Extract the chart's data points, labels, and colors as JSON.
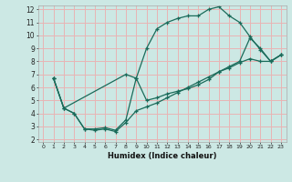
{
  "xlabel": "Humidex (Indice chaleur)",
  "xlim": [
    -0.5,
    23.5
  ],
  "ylim": [
    1.8,
    12.3
  ],
  "xticks": [
    0,
    1,
    2,
    3,
    4,
    5,
    6,
    7,
    8,
    9,
    10,
    11,
    12,
    13,
    14,
    15,
    16,
    17,
    18,
    19,
    20,
    21,
    22,
    23
  ],
  "yticks": [
    2,
    3,
    4,
    5,
    6,
    7,
    8,
    9,
    10,
    11,
    12
  ],
  "bg_color": "#cce8e4",
  "grid_color": "#e8b4b4",
  "line_color": "#1a6b5a",
  "line1_x": [
    1,
    2,
    3,
    4,
    5,
    6,
    7,
    8,
    9,
    10,
    11,
    12,
    13,
    14,
    15,
    16,
    17,
    18,
    19,
    20,
    21,
    22,
    23
  ],
  "line1_y": [
    6.7,
    4.4,
    4.0,
    2.8,
    2.8,
    2.9,
    2.7,
    3.5,
    6.7,
    9.0,
    10.5,
    11.0,
    11.3,
    11.5,
    11.5,
    12.0,
    12.2,
    11.5,
    11.0,
    9.9,
    8.9,
    8.0,
    8.5
  ],
  "line2_x": [
    1,
    2,
    8,
    9,
    10,
    11,
    12,
    13,
    14,
    15,
    16,
    17,
    18,
    19,
    20,
    21,
    22,
    23
  ],
  "line2_y": [
    6.7,
    4.4,
    7.0,
    6.7,
    5.0,
    5.2,
    5.5,
    5.7,
    5.9,
    6.2,
    6.6,
    7.2,
    7.6,
    8.0,
    9.8,
    9.0,
    8.0,
    8.5
  ],
  "line3_x": [
    1,
    2,
    3,
    4,
    5,
    6,
    7,
    8,
    9,
    10,
    11,
    12,
    13,
    14,
    15,
    16,
    17,
    18,
    19,
    20,
    21,
    22,
    23
  ],
  "line3_y": [
    6.7,
    4.4,
    4.0,
    2.8,
    2.7,
    2.8,
    2.6,
    3.3,
    4.2,
    4.5,
    4.8,
    5.2,
    5.6,
    6.0,
    6.4,
    6.8,
    7.2,
    7.5,
    7.9,
    8.2,
    8.0,
    8.0,
    8.5
  ]
}
